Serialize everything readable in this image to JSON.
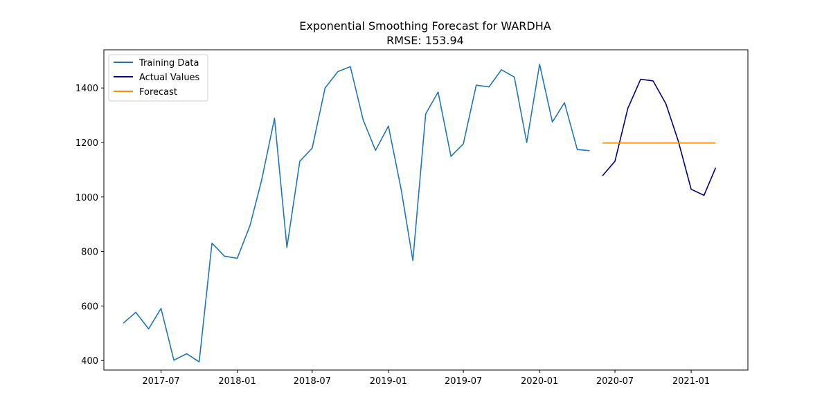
{
  "chart_data": {
    "type": "line",
    "title": "Exponential Smoothing Forecast for WARDHA",
    "subtitle": "RMSE: 153.94",
    "xlabel": "",
    "ylabel": "",
    "x_ticks": [
      "2017-07",
      "2018-01",
      "2018-07",
      "2019-01",
      "2019-07",
      "2020-01",
      "2020-07",
      "2021-01"
    ],
    "y_ticks": [
      400,
      600,
      800,
      1000,
      1200,
      1400
    ],
    "xlim": [
      "2017-02-13",
      "2021-05-18"
    ],
    "ylim": [
      365,
      1540
    ],
    "grid": false,
    "legend_position": "top-left",
    "series": [
      {
        "name": "Training Data",
        "color": "#1f77b4",
        "points": [
          [
            "2017-04-01",
            537
          ],
          [
            "2017-05-01",
            577
          ],
          [
            "2017-06-01",
            516
          ],
          [
            "2017-07-01",
            591
          ],
          [
            "2017-08-01",
            401
          ],
          [
            "2017-09-01",
            425
          ],
          [
            "2017-10-01",
            395
          ],
          [
            "2017-11-01",
            831
          ],
          [
            "2017-12-01",
            783
          ],
          [
            "2018-01-01",
            775
          ],
          [
            "2018-02-01",
            896
          ],
          [
            "2018-03-01",
            1063
          ],
          [
            "2018-04-01",
            1289
          ],
          [
            "2018-05-01",
            815
          ],
          [
            "2018-06-01",
            1131
          ],
          [
            "2018-07-01",
            1179
          ],
          [
            "2018-08-01",
            1400
          ],
          [
            "2018-09-01",
            1460
          ],
          [
            "2018-10-01",
            1478
          ],
          [
            "2018-11-01",
            1283
          ],
          [
            "2018-12-01",
            1171
          ],
          [
            "2019-01-01",
            1260
          ],
          [
            "2019-02-01",
            1026
          ],
          [
            "2019-03-01",
            767
          ],
          [
            "2019-04-01",
            1305
          ],
          [
            "2019-05-01",
            1385
          ],
          [
            "2019-06-01",
            1149
          ],
          [
            "2019-07-01",
            1195
          ],
          [
            "2019-08-01",
            1410
          ],
          [
            "2019-09-01",
            1404
          ],
          [
            "2019-10-01",
            1467
          ],
          [
            "2019-11-01",
            1440
          ],
          [
            "2019-12-01",
            1200
          ],
          [
            "2020-01-01",
            1487
          ],
          [
            "2020-02-01",
            1275
          ],
          [
            "2020-03-01",
            1346
          ],
          [
            "2020-04-01",
            1174
          ],
          [
            "2020-05-01",
            1170
          ]
        ]
      },
      {
        "name": "Actual Values",
        "color": "#000080",
        "points": [
          [
            "2020-06-01",
            1078
          ],
          [
            "2020-07-01",
            1131
          ],
          [
            "2020-08-01",
            1325
          ],
          [
            "2020-09-01",
            1432
          ],
          [
            "2020-10-01",
            1426
          ],
          [
            "2020-11-01",
            1342
          ],
          [
            "2020-12-01",
            1205
          ],
          [
            "2021-01-01",
            1028
          ],
          [
            "2021-02-01",
            1006
          ],
          [
            "2021-03-01",
            1107
          ]
        ]
      },
      {
        "name": "Forecast",
        "color": "#ff8c00",
        "points": [
          [
            "2020-06-01",
            1198
          ],
          [
            "2020-07-01",
            1198
          ],
          [
            "2020-08-01",
            1198
          ],
          [
            "2020-09-01",
            1198
          ],
          [
            "2020-10-01",
            1198
          ],
          [
            "2020-11-01",
            1198
          ],
          [
            "2020-12-01",
            1198
          ],
          [
            "2021-01-01",
            1198
          ],
          [
            "2021-02-01",
            1198
          ],
          [
            "2021-03-01",
            1198
          ]
        ]
      }
    ]
  }
}
